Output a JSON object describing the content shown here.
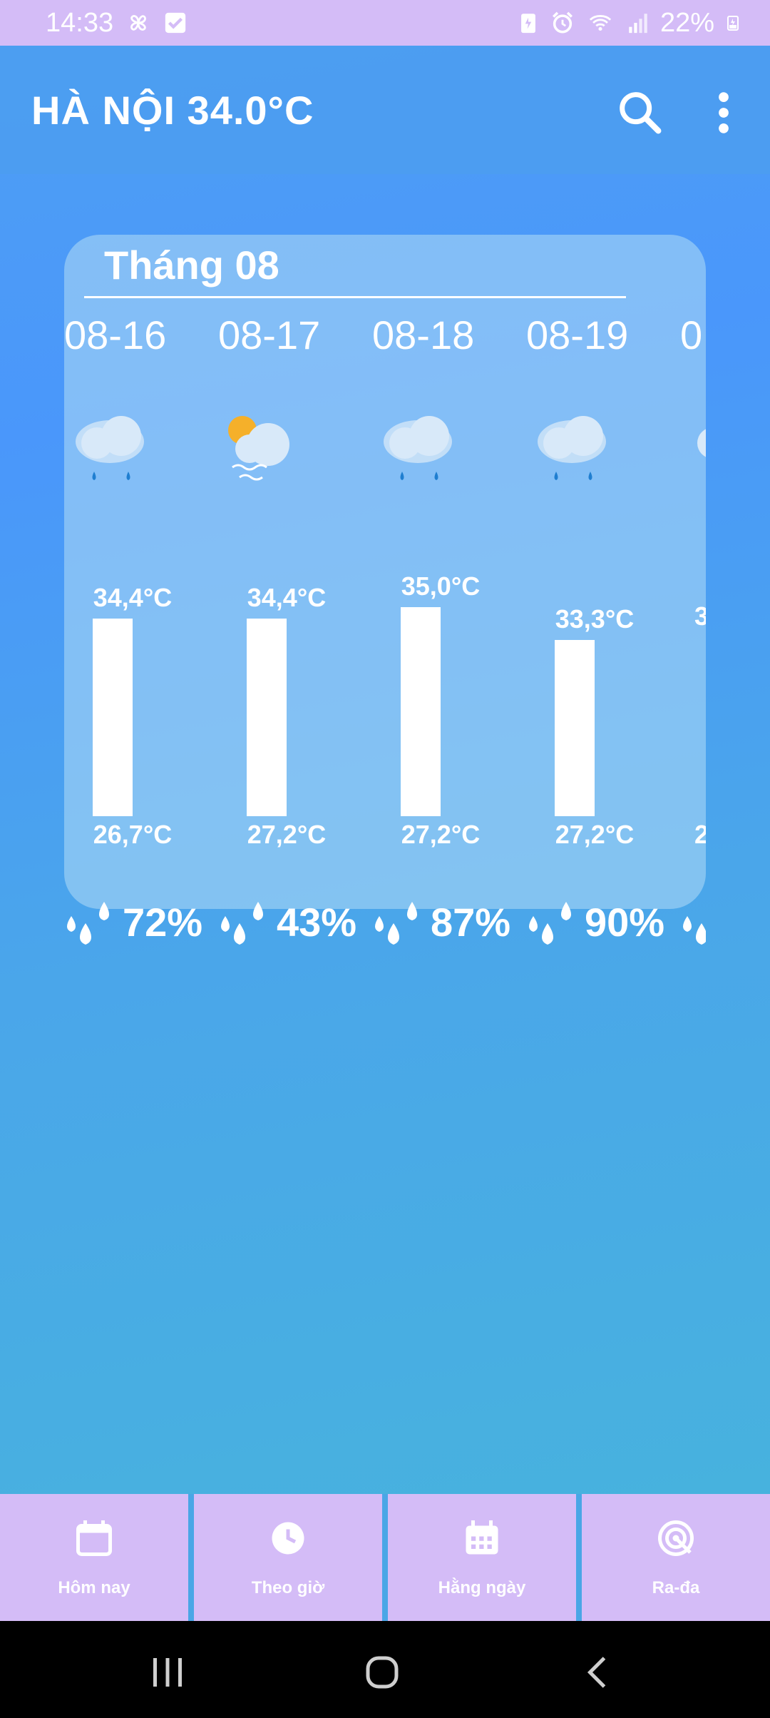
{
  "status_bar": {
    "time": "14:33",
    "battery": "22%",
    "left_icons": [
      "pinwheel-icon",
      "checkbox-icon"
    ],
    "right_icons": [
      "battery-saver-icon",
      "alarm-icon",
      "wifi-icon",
      "signal-icon",
      "battery-charging-icon"
    ]
  },
  "app_bar": {
    "title": "HÀ NỘI  34.0°C",
    "icons": [
      "search-icon",
      "more-vert-icon"
    ]
  },
  "forecast": {
    "month_title": "Tháng 08",
    "days": [
      {
        "date": "08-16",
        "icon": "rain-cloud-icon",
        "max": "34,4°C",
        "min": "26,7°C",
        "max_value": 34.4,
        "min_value": 26.7,
        "humidity": "72%"
      },
      {
        "date": "08-17",
        "icon": "sun-fog-cloud-icon",
        "max": "34,4°C",
        "min": "27,2°C",
        "max_value": 34.4,
        "min_value": 27.2,
        "humidity": "43%"
      },
      {
        "date": "08-18",
        "icon": "rain-cloud-icon",
        "max": "35,0°C",
        "min": "27,2°C",
        "max_value": 35.0,
        "min_value": 27.2,
        "humidity": "87%"
      },
      {
        "date": "08-19",
        "icon": "rain-cloud-icon",
        "max": "33,3°C",
        "min": "27,2°C",
        "max_value": 33.3,
        "min_value": 27.2,
        "humidity": "90%"
      },
      {
        "date": "0",
        "icon": "rain-cloud-icon",
        "max": "3",
        "min": "2",
        "humidity": ""
      }
    ]
  },
  "bottom_nav": {
    "items": [
      {
        "label": "Hôm nay",
        "icon": "calendar-icon"
      },
      {
        "label": "Theo giờ",
        "icon": "clock-icon"
      },
      {
        "label": "Hằng ngày",
        "icon": "calendar-grid-icon"
      },
      {
        "label": "Ra-đa",
        "icon": "radar-icon"
      }
    ]
  },
  "system_nav": {
    "buttons": [
      "recents-icon",
      "home-icon",
      "back-icon"
    ]
  }
}
